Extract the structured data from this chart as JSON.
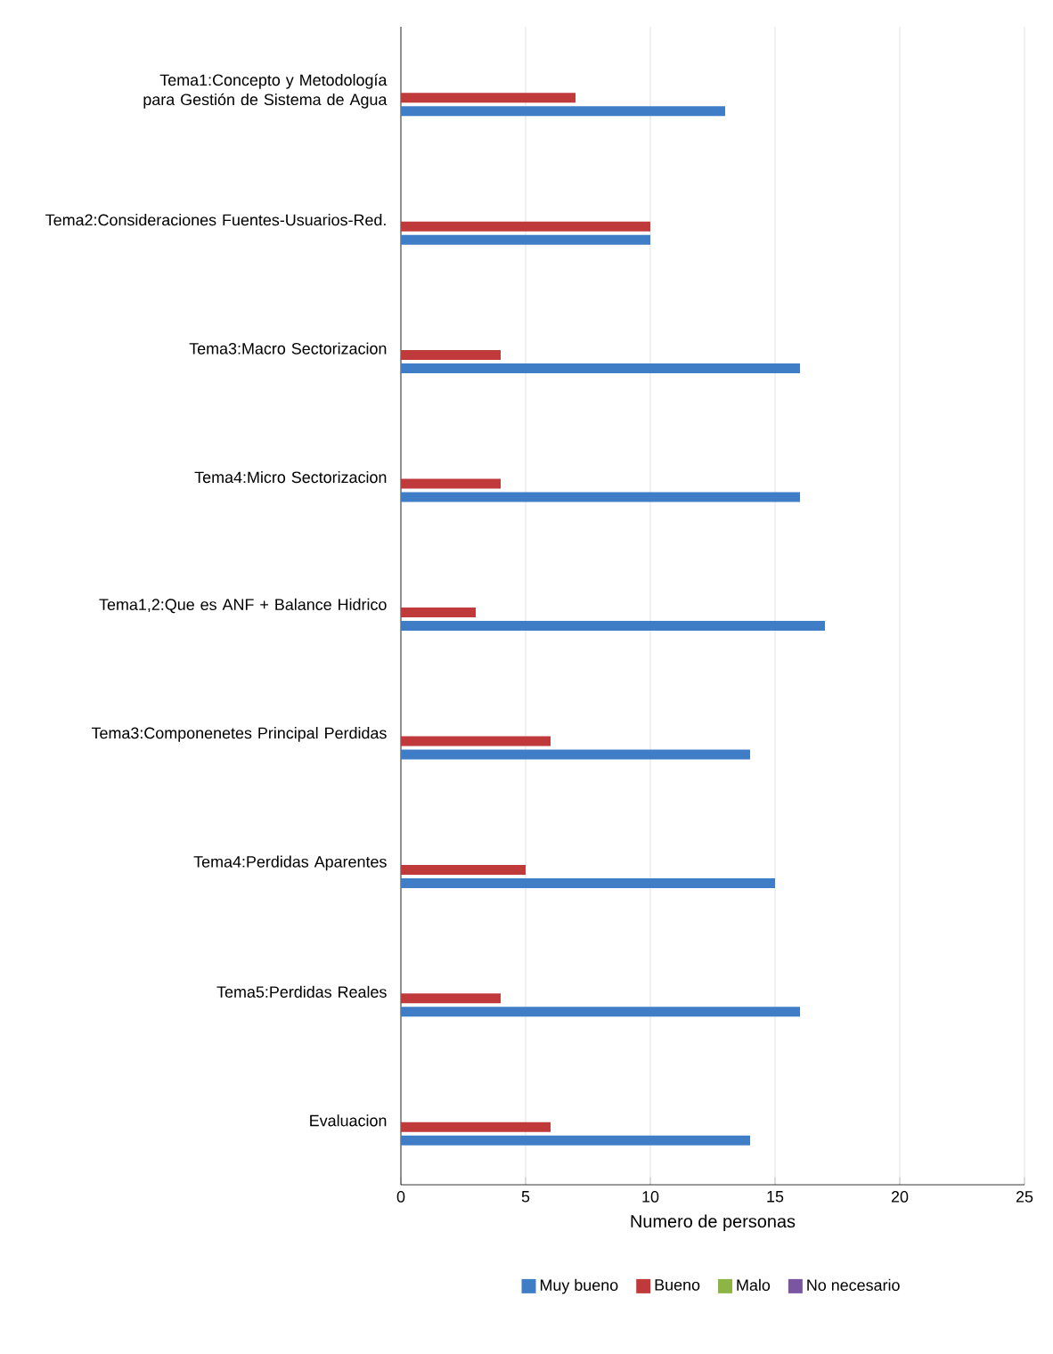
{
  "chart_data": {
    "type": "bar",
    "orientation": "horizontal",
    "xlabel": "Numero de personas",
    "categories": [
      "Tema1:Concepto y Metodología para Gestión de Sistema de Agua",
      "Tema2:Consideraciones Fuentes-Usuarios-Red.",
      "Tema3:Macro Sectorizacion",
      "Tema4:Micro Sectorizacion",
      "Tema1,2:Que es ANF + Balance Hidrico",
      "Tema3:Componenetes Principal Perdidas",
      "Tema4:Perdidas Aparentes",
      "Tema5:Perdidas Reales",
      "Evaluacion"
    ],
    "series": [
      {
        "name": "Muy bueno",
        "color": "#3f7dc6",
        "values": [
          13,
          10,
          16,
          16,
          17,
          14,
          15,
          16,
          14
        ]
      },
      {
        "name": "Bueno",
        "color": "#c0393b",
        "values": [
          7,
          10,
          4,
          4,
          3,
          6,
          5,
          4,
          6
        ]
      },
      {
        "name": "Malo",
        "color": "#8db545",
        "values": [
          0,
          0,
          0,
          0,
          0,
          0,
          0,
          0,
          0
        ]
      },
      {
        "name": "No necesario",
        "color": "#7a55a0",
        "values": [
          0,
          0,
          0,
          0,
          0,
          0,
          0,
          0,
          0
        ]
      }
    ],
    "xlim": [
      0,
      25
    ],
    "xticks": [
      0,
      5,
      10,
      15,
      20,
      25
    ],
    "grid": "x",
    "legend": "bottom"
  }
}
